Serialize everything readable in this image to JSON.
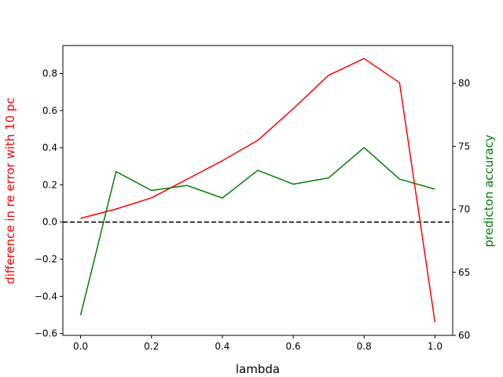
{
  "chart_data": {
    "type": "line",
    "title": "",
    "xlabel": "lambda",
    "ylabel_left": "difference in re error with 10 pc",
    "ylabel_right": "predicton accuracy",
    "xlim": [
      -0.05,
      1.05
    ],
    "ylim_left": [
      -0.61,
      0.95
    ],
    "ylim_right": [
      60,
      83
    ],
    "x_ticks": [
      0.0,
      0.2,
      0.4,
      0.6,
      0.8,
      1.0
    ],
    "x_tick_labels": [
      "0.0",
      "0.2",
      "0.4",
      "0.6",
      "0.8",
      "1.0"
    ],
    "left_ticks": [
      -0.6,
      -0.4,
      -0.2,
      0.0,
      0.2,
      0.4,
      0.6,
      0.8
    ],
    "left_tick_labels": [
      "−0.6",
      "−0.4",
      "−0.2",
      "0.0",
      "0.2",
      "0.4",
      "0.6",
      "0.8"
    ],
    "right_ticks": [
      60,
      65,
      70,
      75,
      80
    ],
    "right_tick_labels": [
      "60",
      "65",
      "70",
      "75",
      "80"
    ],
    "x": [
      0.0,
      0.1,
      0.2,
      0.3,
      0.4,
      0.5,
      0.6,
      0.7,
      0.8,
      0.9,
      1.0
    ],
    "series": [
      {
        "axis": "left",
        "color": "#ff0000",
        "values": [
          0.02,
          0.07,
          0.13,
          0.23,
          0.33,
          0.44,
          0.61,
          0.79,
          0.88,
          0.75,
          -0.54
        ]
      },
      {
        "axis": "right",
        "color": "#008000",
        "values": [
          61.6,
          73.0,
          71.5,
          71.9,
          70.9,
          73.1,
          72.0,
          72.5,
          74.9,
          72.4,
          71.6
        ]
      }
    ],
    "reference_line": {
      "axis": "left",
      "y": 0.0,
      "color": "#000000",
      "style": "dashed"
    },
    "grid": false,
    "legend": "none"
  }
}
